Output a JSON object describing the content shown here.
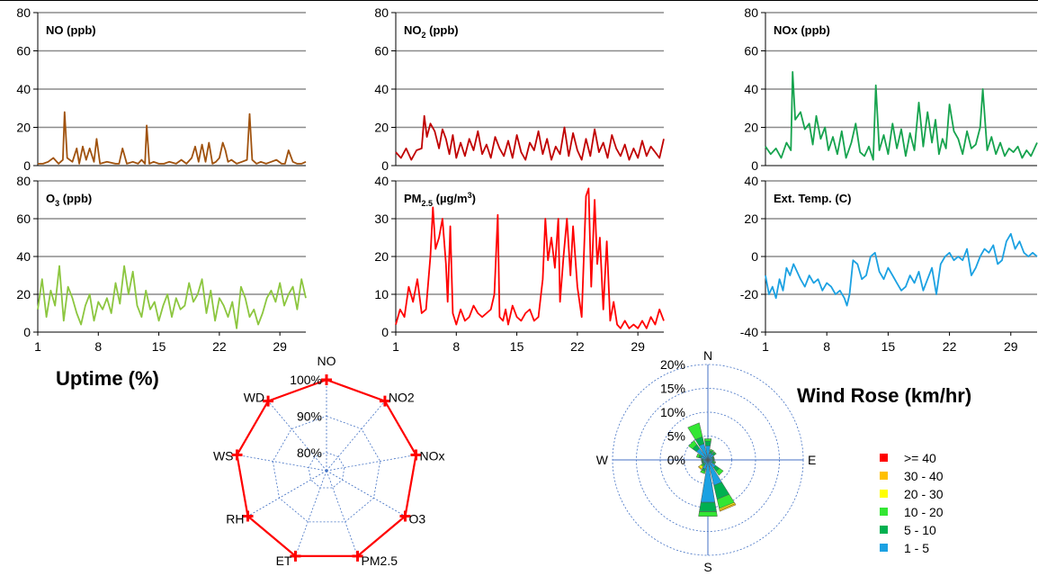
{
  "timeseries_x_ticks": [
    "1",
    "8",
    "15",
    "22",
    "29"
  ],
  "uptime_title": "Uptime (%)",
  "windrose_title": "Wind Rose (km/hr)",
  "chart_data": [
    {
      "type": "line",
      "title": "NO (ppb)",
      "title_main": "NO",
      "title_sub": "",
      "title_sup": "",
      "title_tail": " (ppb)",
      "color": "#A0520E",
      "ylim": [
        0,
        80
      ],
      "yticks": [
        0,
        20,
        40,
        60,
        80
      ],
      "xlim": [
        1,
        32
      ],
      "x": [
        1,
        1.6,
        2.2,
        2.8,
        3.4,
        3.9,
        4.1,
        4.4,
        5,
        5.5,
        5.8,
        6.2,
        6.6,
        7,
        7.5,
        7.8,
        8.2,
        9,
        10,
        10.4,
        10.8,
        11.3,
        12,
        12.6,
        13,
        13.4,
        13.6,
        13.9,
        14.4,
        15,
        15.6,
        16.2,
        17,
        17.6,
        18.2,
        18.8,
        19.2,
        19.6,
        20,
        20.4,
        20.8,
        21.2,
        21.6,
        22,
        22.4,
        22.7,
        23,
        23.4,
        24,
        24.6,
        25.2,
        25.5,
        25.8,
        26.3,
        26.8,
        27.4,
        28,
        28.6,
        29.2,
        29.6,
        30,
        30.5,
        31,
        31.5,
        32
      ],
      "y": [
        1,
        1,
        2,
        4,
        1,
        3,
        28,
        4,
        2,
        9,
        1,
        10,
        3,
        9,
        2,
        14,
        1,
        2,
        1,
        1,
        9,
        1,
        2,
        1,
        3,
        1,
        21,
        1,
        2,
        1,
        1,
        2,
        1,
        3,
        1,
        4,
        10,
        2,
        11,
        2,
        12,
        1,
        2,
        4,
        12,
        8,
        2,
        3,
        1,
        2,
        3,
        27,
        3,
        1,
        2,
        1,
        2,
        3,
        1,
        1,
        8,
        2,
        1,
        1,
        2
      ]
    },
    {
      "type": "line",
      "title": "NO2 (ppb)",
      "title_main": "NO",
      "title_sub": "2",
      "title_sup": "",
      "title_tail": " (ppb)",
      "color": "#C00000",
      "ylim": [
        0,
        80
      ],
      "yticks": [
        0,
        20,
        40,
        60,
        80
      ],
      "xlim": [
        1,
        32
      ],
      "x": [
        1,
        1.6,
        2.2,
        2.8,
        3.4,
        4,
        4.3,
        4.6,
        5,
        5.5,
        6,
        6.4,
        6.8,
        7.2,
        7.6,
        8,
        8.5,
        9,
        9.5,
        10,
        10.5,
        11,
        11.5,
        12,
        12.5,
        13,
        13.5,
        14,
        14.5,
        15,
        15.5,
        16,
        16.5,
        17,
        17.5,
        18,
        18.5,
        19,
        19.5,
        20,
        20.5,
        21,
        21.5,
        22,
        22.5,
        23,
        23.5,
        24,
        24.5,
        25,
        25.5,
        26,
        26.5,
        27,
        27.5,
        28,
        28.5,
        29,
        29.5,
        30,
        30.5,
        31,
        31.5,
        32
      ],
      "y": [
        7,
        4,
        9,
        3,
        8,
        9,
        26,
        15,
        22,
        18,
        9,
        19,
        14,
        6,
        16,
        4,
        12,
        5,
        14,
        8,
        18,
        6,
        11,
        4,
        15,
        9,
        5,
        13,
        4,
        16,
        7,
        3,
        12,
        8,
        18,
        6,
        14,
        3,
        10,
        6,
        20,
        5,
        17,
        8,
        3,
        14,
        5,
        19,
        7,
        12,
        4,
        16,
        9,
        5,
        11,
        3,
        9,
        4,
        13,
        5,
        10,
        7,
        4,
        14
      ]
    },
    {
      "type": "line",
      "title": "NOx (ppb)",
      "title_main": "NOx",
      "title_sub": "",
      "title_sup": "",
      "title_tail": " (ppb)",
      "color": "#16A34E",
      "ylim": [
        0,
        80
      ],
      "yticks": [
        0,
        20,
        40,
        60,
        80
      ],
      "xlim": [
        1,
        32
      ],
      "x": [
        1,
        1.6,
        2.2,
        2.8,
        3.4,
        3.9,
        4.1,
        4.4,
        5,
        5.5,
        6,
        6.4,
        6.8,
        7.3,
        7.8,
        8.2,
        8.7,
        9.2,
        9.7,
        10.2,
        10.8,
        11.3,
        11.8,
        12.3,
        12.8,
        13.3,
        13.6,
        14,
        14.5,
        15,
        15.5,
        16,
        16.5,
        17,
        17.5,
        18,
        18.5,
        19,
        19.5,
        20,
        20.4,
        20.8,
        21.2,
        21.6,
        22,
        22.5,
        23,
        23.5,
        24,
        24.5,
        25,
        25.5,
        25.8,
        26.3,
        26.8,
        27.3,
        27.8,
        28.3,
        28.8,
        29.3,
        29.8,
        30.3,
        30.8,
        31.3,
        32
      ],
      "y": [
        10,
        6,
        9,
        4,
        12,
        8,
        49,
        24,
        28,
        19,
        22,
        11,
        26,
        14,
        20,
        8,
        15,
        6,
        18,
        4,
        12,
        22,
        7,
        5,
        10,
        3,
        42,
        8,
        16,
        6,
        22,
        9,
        19,
        5,
        17,
        8,
        33,
        10,
        28,
        12,
        24,
        6,
        14,
        9,
        32,
        18,
        14,
        6,
        18,
        9,
        11,
        20,
        40,
        8,
        15,
        6,
        12,
        5,
        9,
        7,
        10,
        4,
        8,
        5,
        12
      ]
    },
    {
      "type": "line",
      "title": "O3 (ppb)",
      "title_main": "O",
      "title_sub": "3",
      "title_sup": "",
      "title_tail": " (ppb)",
      "color": "#8CC63F",
      "ylim": [
        0,
        80
      ],
      "yticks": [
        0,
        20,
        40,
        60,
        80
      ],
      "xlim": [
        1,
        32
      ],
      "x": [
        1,
        1.5,
        2,
        2.5,
        3,
        3.5,
        4,
        4.5,
        5,
        5.5,
        6,
        6.5,
        7,
        7.5,
        8,
        8.5,
        9,
        9.5,
        10,
        10.5,
        11,
        11.5,
        12,
        12.5,
        13,
        13.5,
        14,
        14.5,
        15,
        15.5,
        16,
        16.5,
        17,
        17.5,
        18,
        18.5,
        19,
        19.5,
        20,
        20.5,
        21,
        21.5,
        22,
        22.5,
        23,
        23.5,
        24,
        24.5,
        25,
        25.5,
        26,
        26.5,
        27,
        27.5,
        28,
        28.5,
        29,
        29.5,
        30,
        30.5,
        31,
        31.5,
        32
      ],
      "y": [
        12,
        28,
        8,
        22,
        14,
        35,
        6,
        24,
        18,
        10,
        4,
        14,
        20,
        6,
        16,
        12,
        18,
        10,
        26,
        15,
        35,
        20,
        32,
        14,
        8,
        22,
        12,
        16,
        6,
        14,
        20,
        8,
        18,
        12,
        14,
        26,
        16,
        20,
        28,
        10,
        22,
        6,
        18,
        14,
        8,
        16,
        2,
        24,
        18,
        8,
        12,
        4,
        10,
        18,
        22,
        16,
        26,
        14,
        20,
        24,
        12,
        28,
        18
      ]
    },
    {
      "type": "line",
      "title": "PM2.5 (µg/m3)",
      "title_main": "PM",
      "title_sub": "2.5",
      "title_sup": "3",
      "title_tail": " (µg/m",
      "title_close": ")",
      "color": "#FF0000",
      "ylim": [
        0,
        40
      ],
      "yticks": [
        0,
        10,
        20,
        30,
        40
      ],
      "xlim": [
        1,
        32
      ],
      "x": [
        1,
        1.5,
        2,
        2.5,
        3,
        3.5,
        4,
        4.5,
        5,
        5.3,
        5.6,
        6,
        6.4,
        6.8,
        7,
        7.3,
        7.6,
        8,
        8.5,
        9,
        9.5,
        10,
        10.5,
        11,
        11.5,
        12,
        12.4,
        12.8,
        13,
        13.4,
        13.7,
        14,
        14.5,
        15,
        15.5,
        16,
        16.5,
        17,
        17.5,
        18,
        18.3,
        18.6,
        19,
        19.4,
        19.8,
        20,
        20.4,
        20.8,
        21.2,
        21.5,
        22,
        22.5,
        23,
        23.3,
        23.6,
        24,
        24.3,
        24.6,
        25,
        25.4,
        25.8,
        26.2,
        26.6,
        27,
        27.5,
        28,
        28.5,
        29,
        29.5,
        30,
        30.5,
        31,
        31.5,
        32
      ],
      "y": [
        2,
        6,
        4,
        12,
        8,
        14,
        5,
        6,
        20,
        33,
        22,
        25,
        30,
        18,
        8,
        28,
        5,
        2,
        6,
        3,
        4,
        7,
        5,
        4,
        5,
        6,
        10,
        31,
        4,
        3,
        6,
        2,
        7,
        4,
        3,
        5,
        6,
        3,
        4,
        14,
        30,
        19,
        25,
        17,
        30,
        8,
        20,
        30,
        15,
        28,
        12,
        4,
        36,
        38,
        12,
        35,
        18,
        25,
        6,
        24,
        3,
        8,
        2,
        1,
        3,
        1,
        2,
        1,
        3,
        1,
        4,
        2,
        6,
        3
      ]
    },
    {
      "type": "line",
      "title": "Ext. Temp. (C)",
      "title_main": "Ext. Temp. (C)",
      "title_sub": "",
      "title_sup": "",
      "title_tail": "",
      "color": "#1BA1E2",
      "ylim": [
        -40,
        40
      ],
      "yticks": [
        -40,
        -20,
        0,
        20,
        40
      ],
      "xlim": [
        1,
        32
      ],
      "x": [
        1,
        1.4,
        1.8,
        2.2,
        2.6,
        3,
        3.4,
        3.8,
        4.2,
        4.6,
        5,
        5.5,
        6,
        6.5,
        7,
        7.5,
        8,
        8.5,
        9,
        9.5,
        10,
        10.3,
        10.6,
        11,
        11.5,
        12,
        12.5,
        13,
        13.5,
        14,
        14.5,
        15,
        15.5,
        16,
        16.5,
        17,
        17.5,
        18,
        18.5,
        19,
        19.5,
        20,
        20.5,
        21,
        21.5,
        22,
        22.5,
        23,
        23.5,
        24,
        24.5,
        25,
        25.5,
        26,
        26.5,
        27,
        27.5,
        28,
        28.5,
        29,
        29.5,
        30,
        30.5,
        31,
        31.5,
        32
      ],
      "y": [
        -10,
        -20,
        -16,
        -22,
        -12,
        -18,
        -6,
        -10,
        -4,
        -8,
        -12,
        -16,
        -10,
        -14,
        -12,
        -18,
        -14,
        -16,
        -20,
        -18,
        -22,
        -26,
        -20,
        -2,
        -4,
        -12,
        -10,
        0,
        2,
        -8,
        -12,
        -6,
        -10,
        -14,
        -18,
        -16,
        -10,
        -14,
        -8,
        -18,
        -12,
        -6,
        -20,
        -4,
        0,
        2,
        -2,
        0,
        -2,
        4,
        -10,
        -6,
        0,
        4,
        2,
        6,
        -4,
        -2,
        8,
        12,
        4,
        8,
        2,
        0,
        2,
        0
      ]
    },
    {
      "type": "radar",
      "title": "Uptime (%)",
      "categories": [
        "NO",
        "NO2",
        "NOx",
        "O3",
        "PM2.5",
        "ET",
        "RH",
        "WS",
        "WD"
      ],
      "values": [
        100,
        100,
        100,
        100,
        100,
        100,
        100,
        100,
        100
      ],
      "rticks": [
        "80%",
        "90%",
        "100%"
      ],
      "rlim": [
        75,
        100
      ],
      "color": "#FF0000"
    },
    {
      "type": "windrose",
      "title": "Wind Rose (km/hr)",
      "directions": [
        "N",
        "NNE",
        "NE",
        "ENE",
        "E",
        "ESE",
        "SE",
        "SSE",
        "S",
        "SSW",
        "SW",
        "WSW",
        "W",
        "WNW",
        "NW",
        "NNW"
      ],
      "rticks": [
        "0%",
        "5%",
        "10%",
        "15%",
        "20%"
      ],
      "rlim": [
        0,
        20
      ],
      "compass": [
        "N",
        "E",
        "S",
        "W"
      ],
      "legend": [
        {
          "label": ">= 40",
          "color": "#FF0000"
        },
        {
          "label": "30 - 40",
          "color": "#FFC000"
        },
        {
          "label": "20 - 30",
          "color": "#FFFF00"
        },
        {
          "label": "10 - 20",
          "color": "#33E633"
        },
        {
          "label": "5 - 10",
          "color": "#00B050"
        },
        {
          "label": "1 - 5",
          "color": "#1BA1E2"
        }
      ],
      "series": [
        {
          "label": "1 - 5",
          "values": [
            3,
            1.5,
            1.5,
            1,
            1,
            1,
            2,
            5.5,
            9,
            2,
            1,
            1,
            1,
            1.5,
            3,
            3.5
          ]
        },
        {
          "label": "5 - 10",
          "values": [
            1,
            0.5,
            0.5,
            0.3,
            0.3,
            0.5,
            1,
            3,
            2,
            0.5,
            0.5,
            0.3,
            0.3,
            0.5,
            1,
            1.5
          ]
        },
        {
          "label": "10 - 20",
          "values": [
            0.5,
            0.3,
            0.2,
            0.1,
            0.1,
            0.2,
            1,
            2,
            1,
            0.5,
            0.3,
            0.1,
            0.1,
            0.5,
            1,
            3
          ]
        },
        {
          "label": "20 - 30",
          "values": [
            0,
            0,
            0,
            0,
            0,
            0,
            0,
            0.3,
            0,
            0,
            0.5,
            0,
            0,
            0,
            0,
            0
          ]
        },
        {
          "label": "30 - 40",
          "values": [
            0,
            0,
            0,
            0,
            0,
            0,
            0,
            0.3,
            0,
            0,
            0.2,
            0,
            0,
            0,
            0,
            0
          ]
        },
        {
          "label": ">= 40",
          "values": [
            0,
            0,
            0,
            0,
            0,
            0,
            0,
            0,
            0,
            0,
            0,
            0,
            0,
            0,
            0,
            0
          ]
        }
      ]
    }
  ]
}
